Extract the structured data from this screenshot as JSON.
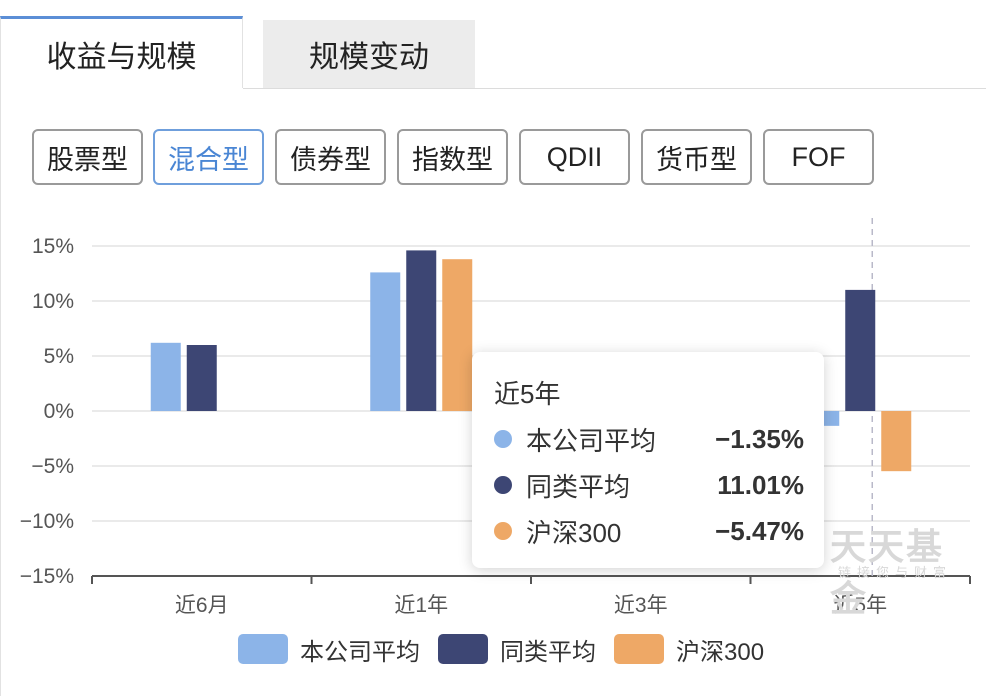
{
  "tabs": [
    {
      "label": "收益与规模",
      "active": true
    },
    {
      "label": "规模变动",
      "active": false
    }
  ],
  "filters": [
    {
      "label": "股票型",
      "selected": false
    },
    {
      "label": "混合型",
      "selected": true
    },
    {
      "label": "债券型",
      "selected": false
    },
    {
      "label": "指数型",
      "selected": false
    },
    {
      "label": "QDII",
      "selected": false
    },
    {
      "label": "货币型",
      "selected": false
    },
    {
      "label": "FOF",
      "selected": false
    }
  ],
  "colors": {
    "accent": "#5b8ed6",
    "series": [
      "#8cb4e8",
      "#3d4674",
      "#eea866"
    ]
  },
  "chart_data": {
    "type": "bar",
    "categories": [
      "近6月",
      "近1年",
      "近3年",
      "近5年"
    ],
    "series": [
      {
        "name": "本公司平均",
        "values": [
          6.2,
          12.6,
          null,
          -1.35
        ]
      },
      {
        "name": "同类平均",
        "values": [
          6.0,
          14.6,
          null,
          11.01
        ]
      },
      {
        "name": "沪深300",
        "values": [
          null,
          13.8,
          null,
          -5.47
        ]
      }
    ],
    "yticks": [
      "15%",
      "10%",
      "5%",
      "0%",
      "−5%",
      "−10%",
      "−15%"
    ],
    "ylim": [
      -15,
      15
    ],
    "grid": true,
    "legend_position": "bottom",
    "highlight_category": "近5年"
  },
  "tooltip": {
    "title": "近5年",
    "rows": [
      {
        "name": "本公司平均",
        "value": "−1.35%"
      },
      {
        "name": "同类平均",
        "value": "11.01%"
      },
      {
        "name": "沪深300",
        "value": "−5.47%"
      }
    ]
  },
  "watermark": {
    "main": "天天基金",
    "sub": "链接您与财富"
  }
}
